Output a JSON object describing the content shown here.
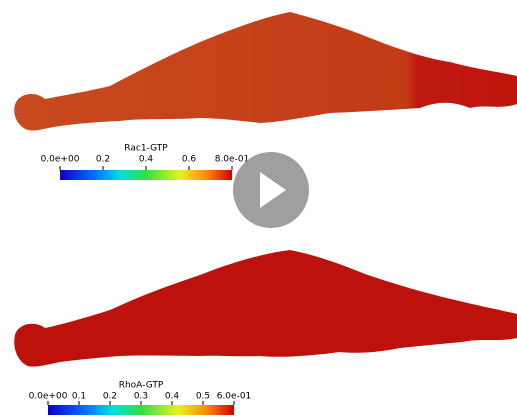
{
  "panels": [
    {
      "colorbar": {
        "title": "Rac1-GTP",
        "ticks": [
          "0.0e+00",
          "0.2",
          "0.4",
          "0.6",
          "8.0e-01"
        ]
      }
    },
    {
      "colorbar": {
        "title": "RhoA-GTP",
        "ticks": [
          "0.0e+00",
          "0.1",
          "0.2",
          "0.3",
          "0.4",
          "0.5",
          "6.0e-01"
        ]
      }
    }
  ]
}
